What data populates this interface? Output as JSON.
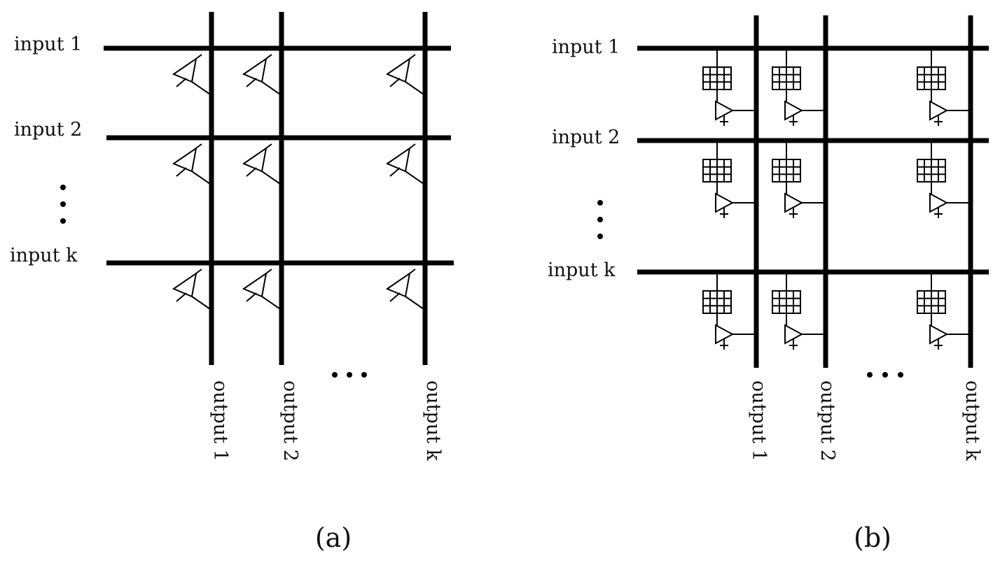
{
  "panel_a": {
    "inputs": [
      "input 1",
      "input 2",
      "input k"
    ],
    "outputs": [
      "output 1",
      "output 2",
      "output k"
    ],
    "caption": "(a)",
    "cell_element": "amplifier-icon"
  },
  "panel_b": {
    "inputs": [
      "input 1",
      "input 2",
      "input k"
    ],
    "outputs": [
      "output 1",
      "output 2",
      "output k"
    ],
    "caption": "(b)",
    "cell_element": "buffer-and-amplifier-icon"
  },
  "ellipsis": "• • •",
  "colors": {
    "ink": "#000000",
    "background": "#ffffff"
  }
}
